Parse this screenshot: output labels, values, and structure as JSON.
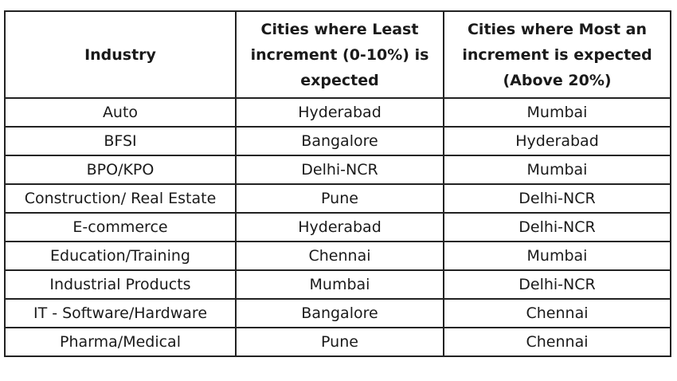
{
  "table": {
    "headers": [
      "Industry",
      "Cities where Least increment (0-10%) is expected",
      "Cities where Most an increment is expected (Above 20%)"
    ],
    "rows": [
      [
        "Auto",
        "Hyderabad",
        "Mumbai"
      ],
      [
        "BFSI",
        "Bangalore",
        "Hyderabad"
      ],
      [
        "BPO/KPO",
        "Delhi-NCR",
        "Mumbai"
      ],
      [
        "Construction/ Real Estate",
        "Pune",
        "Delhi-NCR"
      ],
      [
        "E-commerce",
        "Hyderabad",
        "Delhi-NCR"
      ],
      [
        "Education/Training",
        "Chennai",
        "Mumbai"
      ],
      [
        "Industrial Products",
        "Mumbai",
        "Delhi-NCR"
      ],
      [
        "IT - Software/Hardware",
        "Bangalore",
        "Chennai"
      ],
      [
        "Pharma/Medical",
        "Pune",
        "Chennai"
      ]
    ]
  }
}
